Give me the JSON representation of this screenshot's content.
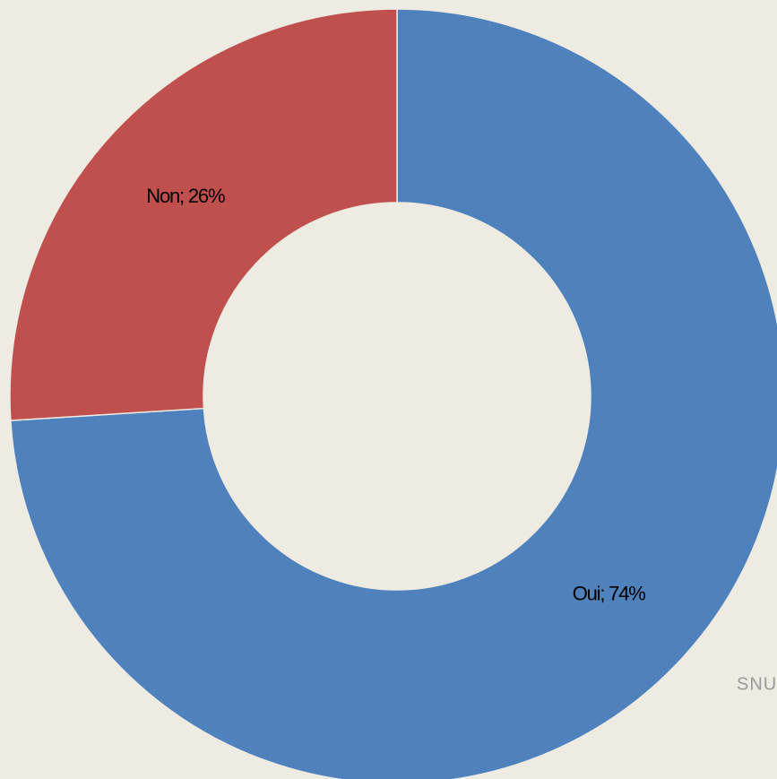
{
  "chart_data": {
    "type": "donut",
    "categories": [
      "Oui",
      "Non"
    ],
    "values": [
      74,
      26
    ],
    "value_labels": [
      "Oui; 74%",
      "Non; 26%"
    ],
    "colors": [
      "#4f81bd",
      "#c0504d"
    ],
    "footer": "SNU"
  }
}
